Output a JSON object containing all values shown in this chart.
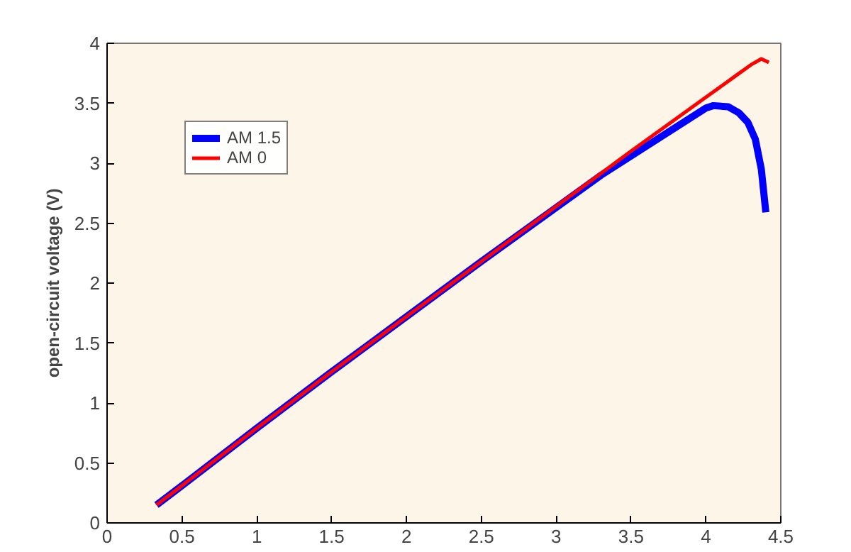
{
  "chart_data": {
    "type": "line",
    "ylabel": "open-circuit voltage (V)",
    "xlim": [
      0,
      4.5
    ],
    "ylim": [
      0,
      4
    ],
    "xticks": [
      0,
      0.5,
      1,
      1.5,
      2,
      2.5,
      3,
      3.5,
      4,
      4.5
    ],
    "yticks": [
      0,
      0.5,
      1,
      1.5,
      2,
      2.5,
      3,
      3.5,
      4
    ],
    "grid": false,
    "legend": "top left",
    "line_style": "solid",
    "series": [
      {
        "name": "AM 1.5",
        "color": "#0000ff",
        "x": [
          0.33,
          0.5,
          1,
          1.5,
          2,
          2.5,
          3,
          3.3,
          3.5,
          3.8,
          4,
          4.05,
          4.15,
          4.22,
          4.28,
          4.33,
          4.37,
          4.4
        ],
        "values": [
          0.15,
          0.31,
          0.79,
          1.26,
          1.72,
          2.18,
          2.63,
          2.9,
          3.06,
          3.3,
          3.46,
          3.48,
          3.47,
          3.42,
          3.34,
          3.2,
          2.95,
          2.59
        ]
      },
      {
        "name": "AM 0",
        "color": "#ff0000",
        "x": [
          0.33,
          0.5,
          1,
          1.5,
          2,
          2.5,
          3,
          3.5,
          4,
          4.2,
          4.3,
          4.37,
          4.42
        ],
        "values": [
          0.15,
          0.31,
          0.79,
          1.26,
          1.72,
          2.18,
          2.64,
          3.1,
          3.55,
          3.73,
          3.82,
          3.87,
          3.84
        ]
      }
    ]
  }
}
